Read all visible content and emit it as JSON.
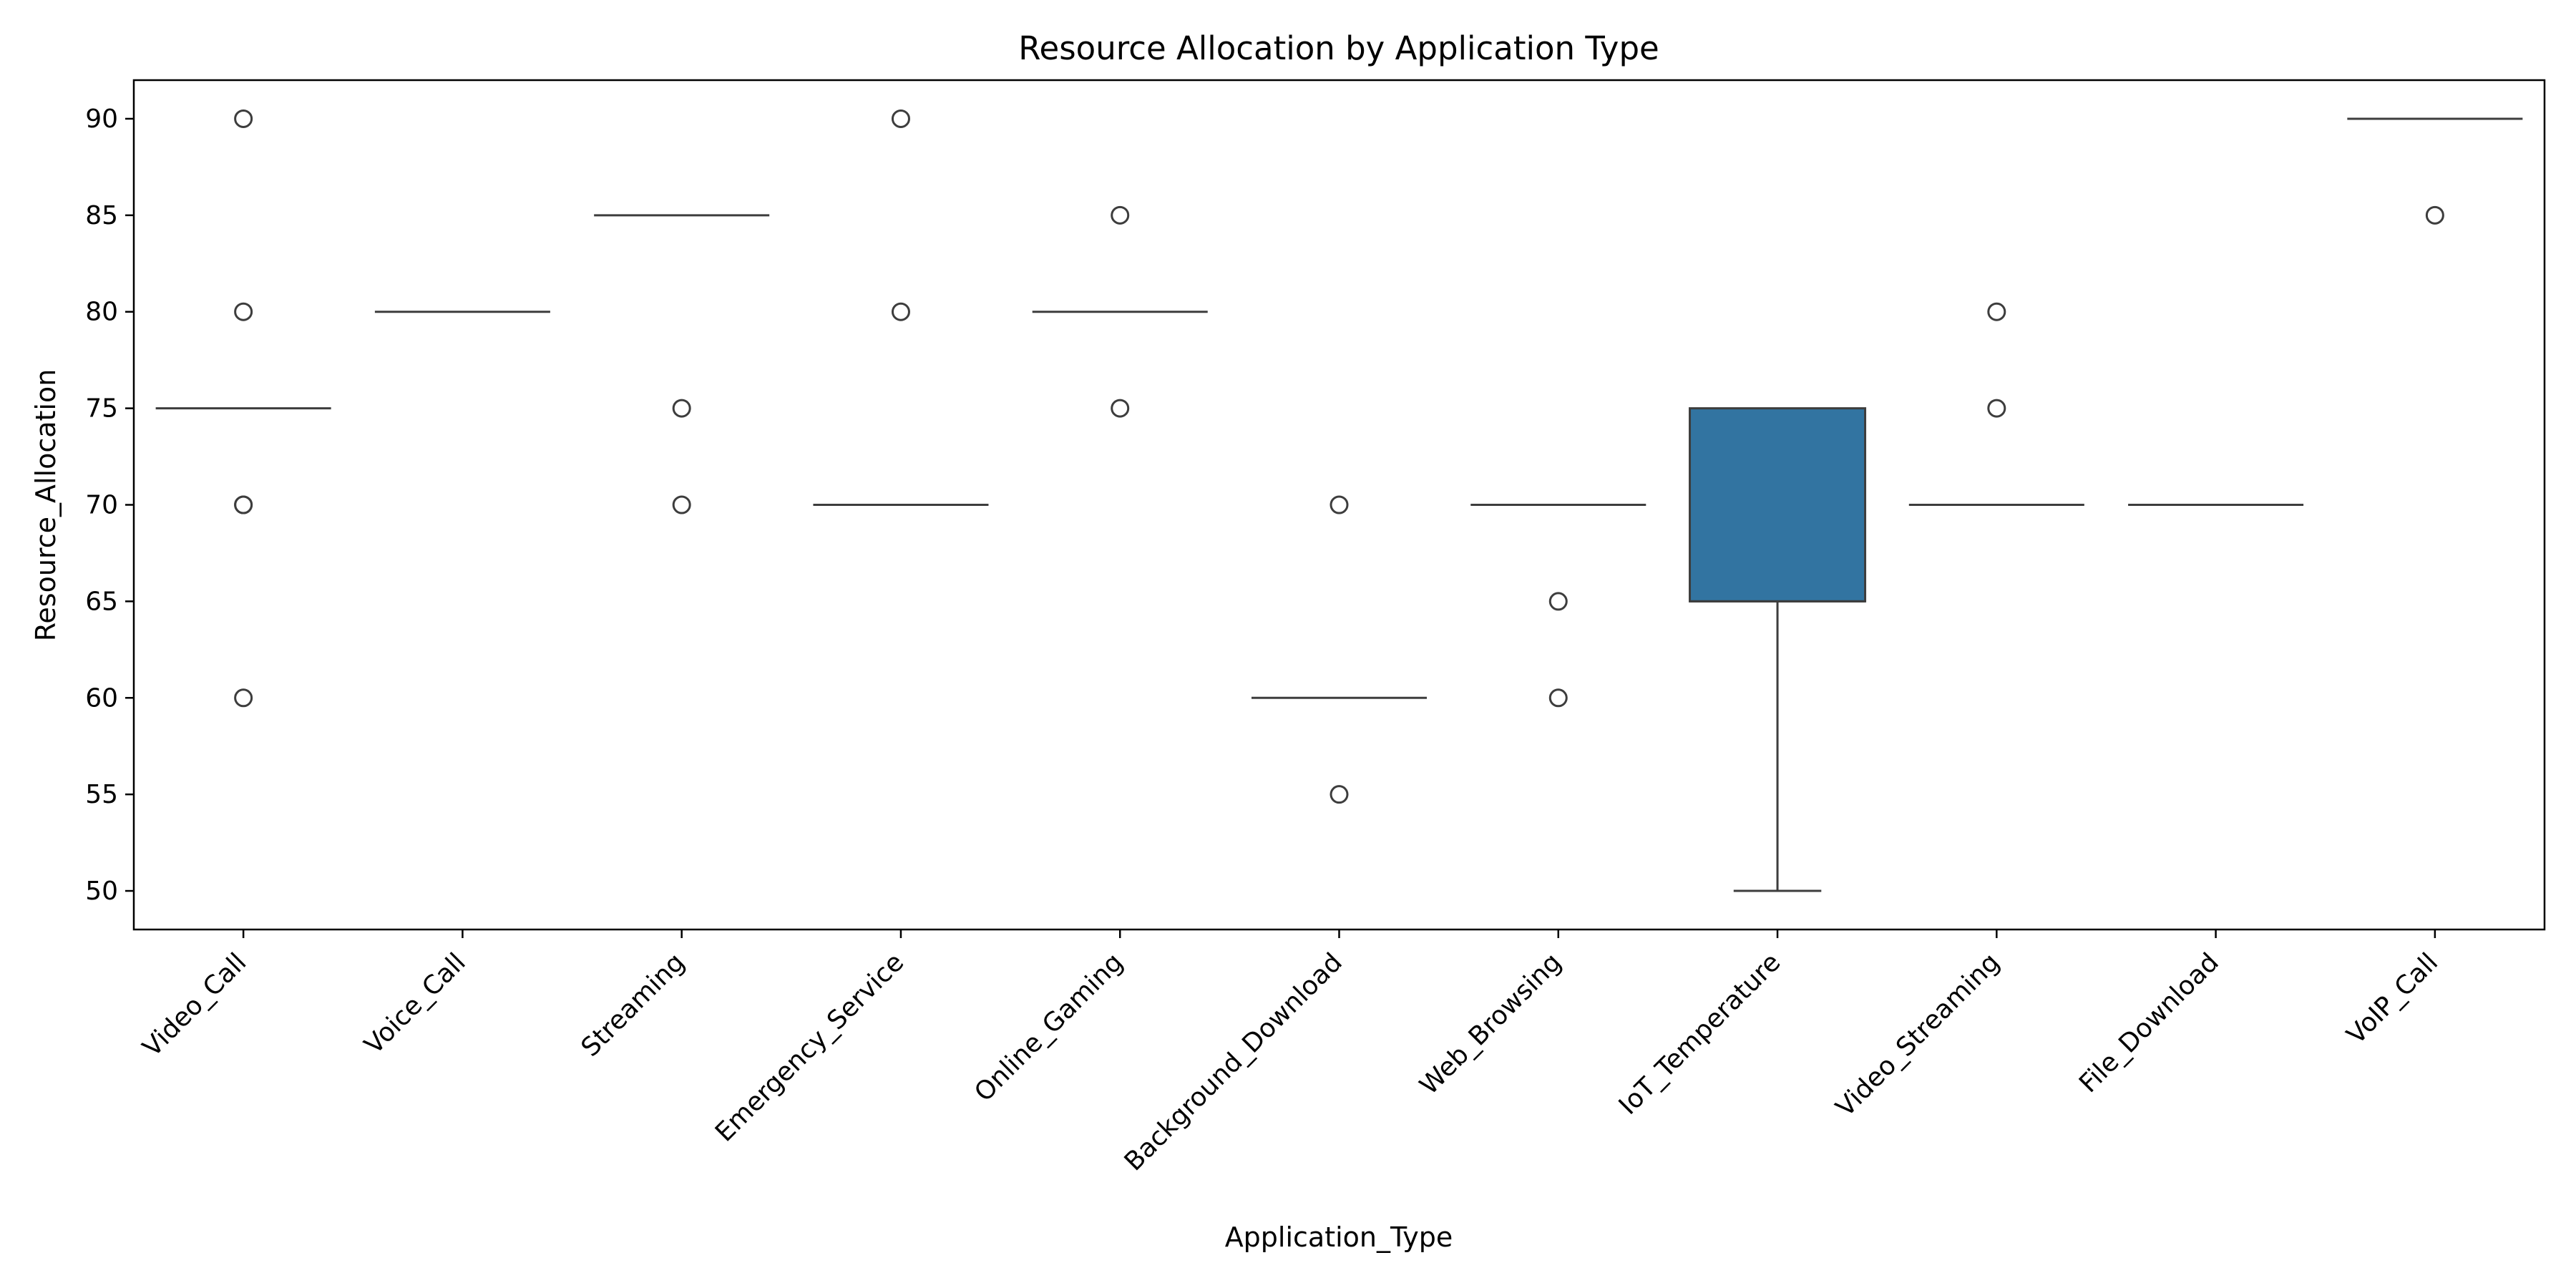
{
  "chart_data": {
    "type": "box",
    "title": "Resource Allocation by Application Type",
    "xlabel": "Application_Type",
    "ylabel": "Resource_Allocation",
    "ylim": [
      48,
      92
    ],
    "yticks": [
      50,
      55,
      60,
      65,
      70,
      75,
      80,
      85,
      90
    ],
    "grid": false,
    "box_color": "#3274a1",
    "line_color": "#3d3d3d",
    "categories": [
      "Video_Call",
      "Voice_Call",
      "Streaming",
      "Emergency_Service",
      "Online_Gaming",
      "Background_Download",
      "Web_Browsing",
      "IoT_Temperature",
      "Video_Streaming",
      "File_Download",
      "VoIP_Call"
    ],
    "boxes": [
      {
        "category": "Video_Call",
        "q1": 75,
        "median": 75,
        "q3": 75,
        "whisker_low": 75,
        "whisker_high": 75,
        "outliers": [
          90,
          80,
          70,
          70,
          60
        ]
      },
      {
        "category": "Voice_Call",
        "q1": 80,
        "median": 80,
        "q3": 80,
        "whisker_low": 80,
        "whisker_high": 80,
        "outliers": []
      },
      {
        "category": "Streaming",
        "q1": 85,
        "median": 85,
        "q3": 85,
        "whisker_low": 85,
        "whisker_high": 85,
        "outliers": [
          75,
          70
        ]
      },
      {
        "category": "Emergency_Service",
        "q1": 70,
        "median": 70,
        "q3": 70,
        "whisker_low": 70,
        "whisker_high": 70,
        "outliers": [
          90,
          80
        ]
      },
      {
        "category": "Online_Gaming",
        "q1": 80,
        "median": 80,
        "q3": 80,
        "whisker_low": 80,
        "whisker_high": 80,
        "outliers": [
          85,
          75
        ]
      },
      {
        "category": "Background_Download",
        "q1": 60,
        "median": 60,
        "q3": 60,
        "whisker_low": 60,
        "whisker_high": 60,
        "outliers": [
          70,
          55
        ]
      },
      {
        "category": "Web_Browsing",
        "q1": 70,
        "median": 70,
        "q3": 70,
        "whisker_low": 70,
        "whisker_high": 70,
        "outliers": [
          65,
          60
        ]
      },
      {
        "category": "IoT_Temperature",
        "q1": 65,
        "median": 65,
        "q3": 75,
        "whisker_low": 50,
        "whisker_high": 75,
        "outliers": []
      },
      {
        "category": "Video_Streaming",
        "q1": 70,
        "median": 70,
        "q3": 70,
        "whisker_low": 70,
        "whisker_high": 70,
        "outliers": [
          80,
          75
        ]
      },
      {
        "category": "File_Download",
        "q1": 70,
        "median": 70,
        "q3": 70,
        "whisker_low": 70,
        "whisker_high": 70,
        "outliers": []
      },
      {
        "category": "VoIP_Call",
        "q1": 90,
        "median": 90,
        "q3": 90,
        "whisker_low": 90,
        "whisker_high": 90,
        "outliers": [
          85
        ]
      }
    ]
  }
}
